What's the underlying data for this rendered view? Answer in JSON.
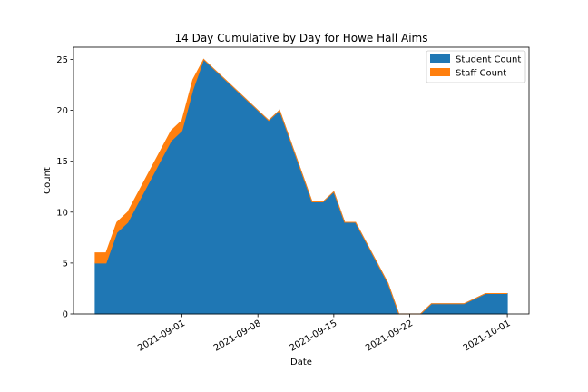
{
  "chart_data": {
    "type": "area",
    "stacked": true,
    "title": "14 Day Cumulative by Day for Howe Hall Aims",
    "xlabel": "Date",
    "ylabel": "Count",
    "ylim": [
      0,
      26.2
    ],
    "xlim": [
      "2021-08-22",
      "2021-10-03"
    ],
    "yticks": [
      0,
      5,
      10,
      15,
      20,
      25
    ],
    "xticks": [
      "2021-09-01",
      "2021-09-08",
      "2021-09-15",
      "2021-09-22",
      "2021-10-01"
    ],
    "legend_position": "top-right",
    "x": [
      "2021-08-24",
      "2021-08-25",
      "2021-08-26",
      "2021-08-27",
      "2021-08-28",
      "2021-08-29",
      "2021-08-30",
      "2021-08-31",
      "2021-09-01",
      "2021-09-02",
      "2021-09-03",
      "2021-09-04",
      "2021-09-05",
      "2021-09-06",
      "2021-09-07",
      "2021-09-08",
      "2021-09-09",
      "2021-09-10",
      "2021-09-11",
      "2021-09-12",
      "2021-09-13",
      "2021-09-14",
      "2021-09-15",
      "2021-09-16",
      "2021-09-17",
      "2021-09-18",
      "2021-09-19",
      "2021-09-20",
      "2021-09-21",
      "2021-09-22",
      "2021-09-23",
      "2021-09-24",
      "2021-09-25",
      "2021-09-26",
      "2021-09-27",
      "2021-09-28",
      "2021-09-29",
      "2021-09-30",
      "2021-10-01"
    ],
    "series": [
      {
        "name": "Student Count",
        "color": "#1f77b4",
        "values": [
          5,
          5,
          8,
          9,
          11,
          13,
          15,
          17,
          18,
          22,
          25,
          24,
          23,
          22,
          21,
          20,
          19,
          20,
          17,
          14,
          11,
          11,
          12,
          9,
          9,
          7,
          5,
          3,
          0,
          0,
          0,
          1,
          1,
          1,
          1,
          1.5,
          2,
          2,
          2
        ]
      },
      {
        "name": "Staff Count",
        "color": "#ff7f0e",
        "values": [
          1,
          1,
          1,
          1,
          1,
          1,
          1,
          1,
          1,
          1,
          0,
          0,
          0,
          0,
          0,
          0,
          0,
          0,
          0,
          0,
          0,
          0,
          0,
          0,
          0,
          0,
          0,
          0,
          0,
          0,
          0,
          0,
          0,
          0,
          0,
          0,
          0,
          0,
          0
        ]
      }
    ]
  }
}
